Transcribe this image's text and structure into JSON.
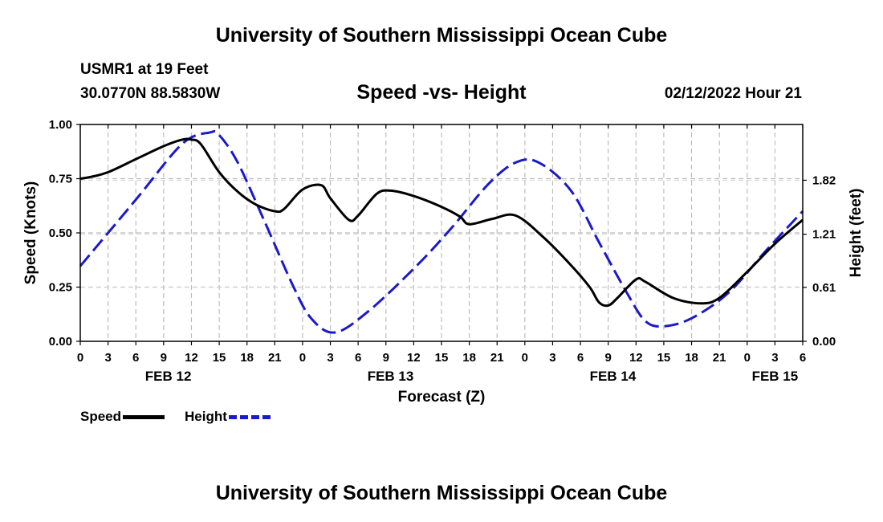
{
  "header": {
    "title": "University of Southern Mississippi Ocean Cube",
    "station": "USMR1 at 19 Feet",
    "coords": "30.0770N  88.5830W",
    "subtitle": "Speed -vs- Height",
    "datetime": "02/12/2022 Hour 21"
  },
  "footer": {
    "title": "University of Southern Mississippi Ocean Cube"
  },
  "legend": {
    "speed": "Speed",
    "height": "Height"
  },
  "chart_data": {
    "type": "line",
    "title": "Speed -vs- Height",
    "xlabel": "Forecast (Z)",
    "ylabel": "Speed (Knots)",
    "y2label": "Height (feet)",
    "xlim": [
      0,
      78
    ],
    "ylim": [
      0,
      1
    ],
    "y2lim": [
      0,
      2.45
    ],
    "grid": true,
    "legend_position": "bottom-left",
    "x_tick_labels": [
      "0",
      "3",
      "6",
      "9",
      "12",
      "15",
      "18",
      "21",
      "0",
      "3",
      "6",
      "9",
      "12",
      "15",
      "18",
      "21",
      "0",
      "3",
      "6",
      "9",
      "12",
      "15",
      "18",
      "21",
      "0",
      "3",
      "6"
    ],
    "date_labels": [
      {
        "label": "FEB 12",
        "hour": 9.5
      },
      {
        "label": "FEB 13",
        "hour": 33.5
      },
      {
        "label": "FEB 14",
        "hour": 57.5
      },
      {
        "label": "FEB 15",
        "hour": 75
      }
    ],
    "y_ticks": [
      "0.00",
      "0.25",
      "0.50",
      "0.75",
      "1.00"
    ],
    "y_tick_values": [
      0,
      0.25,
      0.5,
      0.75,
      1.0
    ],
    "y2_ticks": [
      "0.00",
      "0.61",
      "1.21",
      "1.82"
    ],
    "y2_tick_values": [
      0,
      0.61,
      1.21,
      1.82
    ],
    "series": [
      {
        "name": "Speed",
        "axis": "left",
        "color": "#000000",
        "dashed": false,
        "x": [
          0,
          1,
          3,
          6,
          9,
          11,
          12,
          13,
          15,
          17,
          19,
          21,
          22,
          24,
          26,
          27,
          29,
          30,
          32,
          33.5,
          36,
          39,
          41,
          42,
          44.5,
          47,
          50,
          53,
          55,
          56,
          57,
          58,
          60,
          61,
          64,
          67,
          69,
          72,
          75,
          78
        ],
        "values": [
          0.75,
          0.757,
          0.78,
          0.84,
          0.9,
          0.93,
          0.93,
          0.91,
          0.78,
          0.69,
          0.63,
          0.6,
          0.61,
          0.7,
          0.72,
          0.66,
          0.56,
          0.58,
          0.68,
          0.695,
          0.67,
          0.62,
          0.575,
          0.54,
          0.565,
          0.58,
          0.48,
          0.35,
          0.25,
          0.18,
          0.165,
          0.2,
          0.285,
          0.275,
          0.2,
          0.175,
          0.2,
          0.32,
          0.45,
          0.56
        ]
      },
      {
        "name": "Height",
        "axis": "right",
        "color": "#1a1acc",
        "dashed": true,
        "x": [
          0,
          6,
          11,
          14,
          15,
          17,
          20,
          23,
          25,
          27.5,
          31,
          36,
          40,
          44,
          47,
          49.5,
          53,
          56,
          59,
          61,
          63,
          66,
          70,
          74,
          78
        ],
        "values": [
          0.85,
          1.6,
          2.23,
          2.36,
          2.33,
          2.02,
          1.33,
          0.62,
          0.25,
          0.1,
          0.33,
          0.82,
          1.27,
          1.77,
          2.02,
          2.02,
          1.7,
          1.12,
          0.55,
          0.23,
          0.17,
          0.26,
          0.55,
          1.02,
          1.47
        ]
      }
    ]
  }
}
